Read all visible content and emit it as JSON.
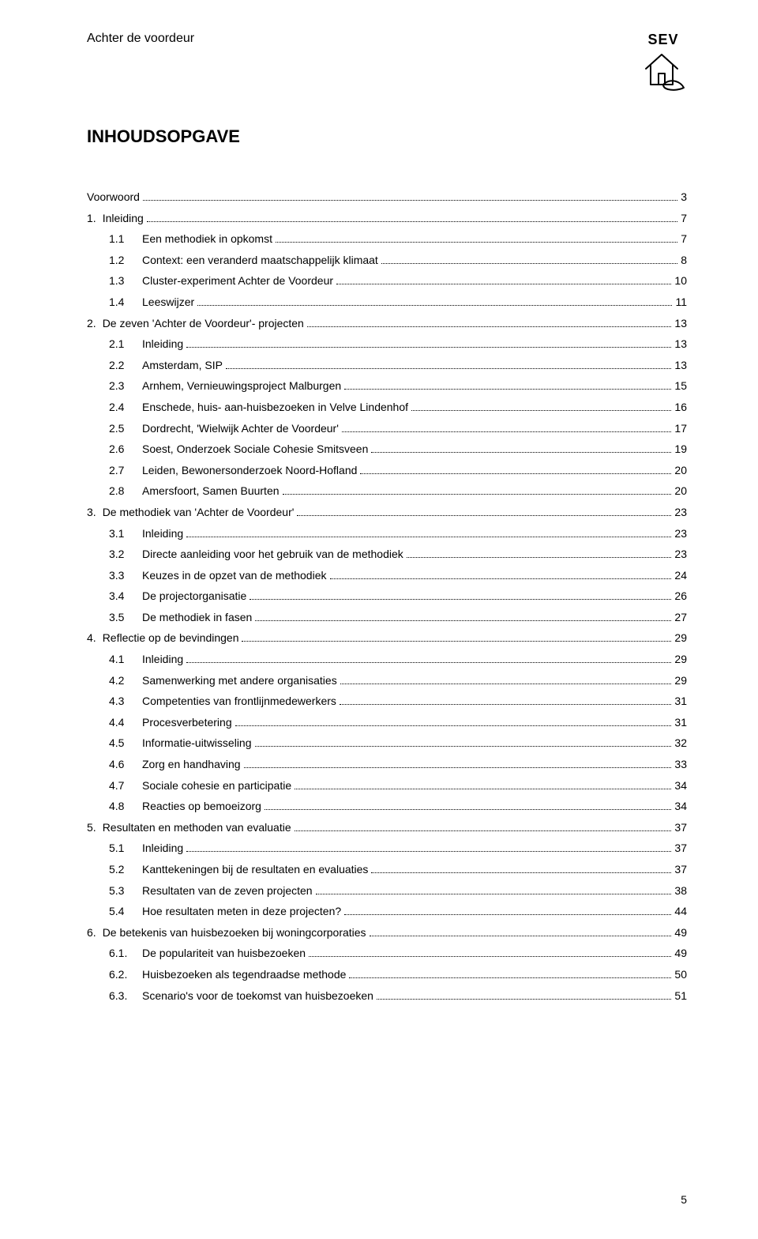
{
  "header": {
    "running_title": "Achter de voordeur",
    "logo_text": "SEV"
  },
  "heading": "INHOUDSOPGAVE",
  "page_number": "5",
  "toc": [
    {
      "level": 0,
      "num": "",
      "label": "Voorwoord",
      "page": "3"
    },
    {
      "level": 0,
      "num": "1.",
      "label": "Inleiding",
      "page": "7"
    },
    {
      "level": 1,
      "num": "1.1",
      "label": "Een methodiek in opkomst",
      "page": "7"
    },
    {
      "level": 1,
      "num": "1.2",
      "label": "Context: een veranderd maatschappelijk klimaat",
      "page": "8"
    },
    {
      "level": 1,
      "num": "1.3",
      "label": "Cluster-experiment Achter de Voordeur",
      "page": "10"
    },
    {
      "level": 1,
      "num": "1.4",
      "label": "Leeswijzer",
      "page": "11"
    },
    {
      "level": 0,
      "num": "2.",
      "label": "De zeven 'Achter de Voordeur'- projecten",
      "page": "13"
    },
    {
      "level": 1,
      "num": "2.1",
      "label": "Inleiding",
      "page": "13"
    },
    {
      "level": 1,
      "num": "2.2",
      "label": "Amsterdam, SIP",
      "page": "13"
    },
    {
      "level": 1,
      "num": "2.3",
      "label": "Arnhem, Vernieuwingsproject Malburgen",
      "page": "15"
    },
    {
      "level": 1,
      "num": "2.4",
      "label": "Enschede, huis- aan-huisbezoeken in Velve Lindenhof",
      "page": "16"
    },
    {
      "level": 1,
      "num": "2.5",
      "label": "Dordrecht, 'Wielwijk Achter de Voordeur'",
      "page": "17"
    },
    {
      "level": 1,
      "num": "2.6",
      "label": "Soest, Onderzoek Sociale Cohesie Smitsveen",
      "page": "19"
    },
    {
      "level": 1,
      "num": "2.7",
      "label": "Leiden, Bewonersonderzoek Noord-Hofland",
      "page": "20"
    },
    {
      "level": 1,
      "num": "2.8",
      "label": "Amersfoort, Samen Buurten",
      "page": "20"
    },
    {
      "level": 0,
      "num": "3.",
      "label": "De methodiek van 'Achter de Voordeur'",
      "page": "23"
    },
    {
      "level": 1,
      "num": "3.1",
      "label": "Inleiding",
      "page": "23"
    },
    {
      "level": 1,
      "num": "3.2",
      "label": "Directe aanleiding voor het gebruik van de methodiek",
      "page": "23"
    },
    {
      "level": 1,
      "num": "3.3",
      "label": "Keuzes in de opzet van de methodiek",
      "page": "24"
    },
    {
      "level": 1,
      "num": "3.4",
      "label": "De projectorganisatie",
      "page": "26"
    },
    {
      "level": 1,
      "num": "3.5",
      "label": "De methodiek in fasen",
      "page": "27"
    },
    {
      "level": 0,
      "num": "4.",
      "label": "Reflectie op de bevindingen",
      "page": "29"
    },
    {
      "level": 1,
      "num": "4.1",
      "label": "Inleiding",
      "page": "29"
    },
    {
      "level": 1,
      "num": "4.2",
      "label": "Samenwerking met andere organisaties",
      "page": "29"
    },
    {
      "level": 1,
      "num": "4.3",
      "label": "Competenties van frontlijnmedewerkers",
      "page": "31"
    },
    {
      "level": 1,
      "num": "4.4",
      "label": "Procesverbetering",
      "page": "31"
    },
    {
      "level": 1,
      "num": "4.5",
      "label": "Informatie-uitwisseling",
      "page": "32"
    },
    {
      "level": 1,
      "num": "4.6",
      "label": "Zorg en handhaving",
      "page": "33"
    },
    {
      "level": 1,
      "num": "4.7",
      "label": "Sociale cohesie en participatie",
      "page": "34"
    },
    {
      "level": 1,
      "num": "4.8",
      "label": "Reacties op bemoeizorg",
      "page": "34"
    },
    {
      "level": 0,
      "num": "5.",
      "label": "Resultaten en methoden van evaluatie",
      "page": "37"
    },
    {
      "level": 1,
      "num": "5.1",
      "label": "Inleiding",
      "page": "37"
    },
    {
      "level": 1,
      "num": "5.2",
      "label": "Kanttekeningen bij de resultaten en evaluaties",
      "page": "37"
    },
    {
      "level": 1,
      "num": "5.3",
      "label": "Resultaten van de zeven projecten",
      "page": "38"
    },
    {
      "level": 1,
      "num": "5.4",
      "label": "Hoe resultaten meten in deze projecten?",
      "page": "44"
    },
    {
      "level": 0,
      "num": "6.",
      "label": "De betekenis van huisbezoeken bij  woningcorporaties",
      "page": "49"
    },
    {
      "level": 1,
      "num": "6.1.",
      "label": "De populariteit van huisbezoeken",
      "page": "49"
    },
    {
      "level": 1,
      "num": "6.2.",
      "label": "Huisbezoeken als tegendraadse methode",
      "page": "50"
    },
    {
      "level": 1,
      "num": "6.3.",
      "label": "Scenario's voor de toekomst van huisbezoeken",
      "page": "51"
    }
  ]
}
